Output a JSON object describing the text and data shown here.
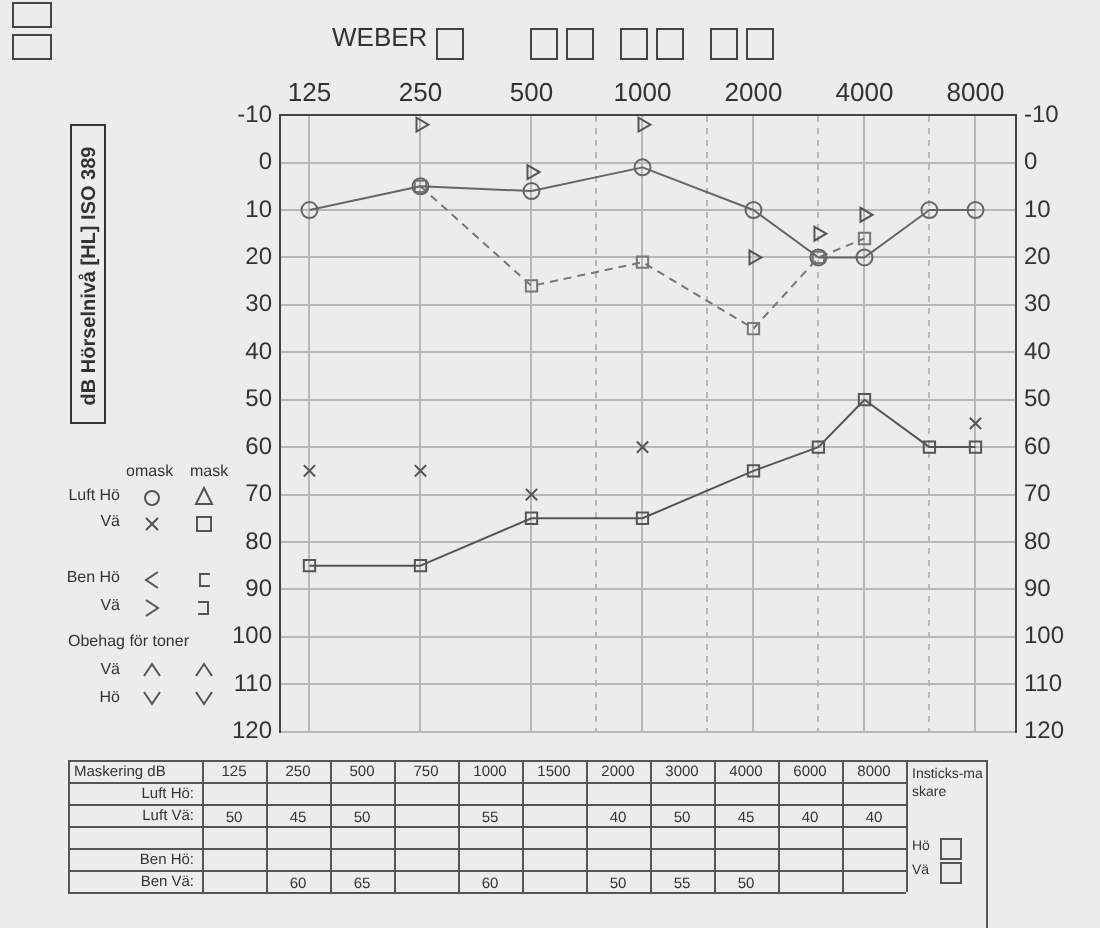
{
  "chart_data": [
    {
      "type": "line",
      "title": "WEBER",
      "ylabel": "dB Hörselnivå [HL] ISO 389",
      "log": "x",
      "grid": true,
      "legend": false,
      "xlim": [
        104,
        10300
      ],
      "xticks": [
        125,
        250,
        500,
        {
          "value": 750,
          "label": null
        },
        1000,
        {
          "value": 1500,
          "label": null
        },
        2000,
        {
          "value": 3000,
          "label": null
        },
        4000,
        {
          "value": 6000,
          "label": null
        },
        8000
      ],
      "ylim": [
        120,
        -10
      ],
      "yticks": [
        -10,
        0,
        10,
        20,
        30,
        40,
        50,
        60,
        70,
        80,
        90,
        100,
        110,
        120
      ],
      "y2lim": [
        120,
        -10
      ],
      "y2ticks": [
        -10,
        0,
        10,
        20,
        30,
        40,
        50,
        60,
        70,
        80,
        90,
        100,
        110,
        120
      ],
      "annotations": [
        "omask",
        "mask",
        "Luft Hö",
        "Vä",
        "Ben Hö",
        "Vä",
        "Obehag för toner",
        "Vä",
        "Hö"
      ],
      "series": [
        {
          "type": "line",
          "color": "#666666",
          "marker": "circle",
          "line_style": "solid",
          "x": [
            125,
            250,
            500,
            1000,
            2000,
            3000,
            4000,
            6000,
            8000
          ],
          "values": [
            10,
            5,
            6,
            1,
            10,
            20,
            20,
            10,
            10
          ]
        },
        {
          "type": "line",
          "color": "#777777",
          "marker": "square",
          "line_style": "dashed",
          "x": [
            250,
            500,
            1000,
            2000,
            3000,
            4000
          ],
          "values": [
            5,
            26,
            21,
            35,
            20,
            16
          ]
        },
        {
          "type": "scatter",
          "color": "#555555",
          "marker": "triangle",
          "x": [
            250,
            500,
            1000,
            2000,
            3000,
            4000
          ],
          "values": [
            -8,
            2,
            -8,
            20,
            15,
            11
          ]
        },
        {
          "type": "scatter",
          "color": "#555555",
          "marker": "cross",
          "x": [
            125,
            250,
            500,
            1000,
            8000
          ],
          "values": [
            65,
            65,
            70,
            60,
            55
          ]
        },
        {
          "type": "line",
          "color": "#555555",
          "marker": "square",
          "line_style": "solid",
          "x": [
            125,
            250,
            500,
            1000,
            2000,
            3000,
            4000,
            6000,
            8000
          ],
          "values": [
            85,
            85,
            75,
            75,
            65,
            60,
            50,
            60,
            60
          ]
        }
      ]
    },
    {
      "type": "heatmap",
      "title": "Maskering dB",
      "data_labels": true,
      "categories": [
        "125",
        "250",
        "500",
        "750",
        "1000",
        "1500",
        "2000",
        "3000",
        "4000",
        "6000",
        "8000"
      ],
      "y_categories": [
        "Luft Hö:",
        "Luft Vä:",
        "Ben Hö:",
        "Ben Vä:"
      ],
      "cells": [
        [
          null,
          null,
          null,
          null,
          null,
          null,
          null,
          null,
          null,
          null,
          null
        ],
        [
          50,
          45,
          50,
          null,
          55,
          null,
          40,
          50,
          45,
          40,
          40
        ],
        [
          null,
          null,
          null,
          null,
          null,
          null,
          null,
          null,
          null,
          null,
          null
        ],
        [
          null,
          60,
          65,
          null,
          60,
          null,
          50,
          55,
          50,
          null,
          null
        ]
      ],
      "annotations": [
        "Insticks-maskare",
        "Hö",
        "Vä"
      ]
    }
  ]
}
